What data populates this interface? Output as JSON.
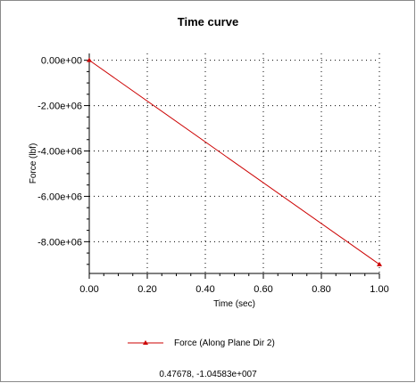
{
  "window": {
    "title": "Time curve"
  },
  "readout": "0.47678, -1.04583e+007",
  "chart_data": {
    "type": "line",
    "title": "Time curve",
    "xlabel": "Time (sec)",
    "ylabel": "Force (lbf)",
    "xlim": [
      0,
      1
    ],
    "ylim": [
      -9400000,
      300000
    ],
    "x_ticks": [
      0,
      0.2,
      0.4,
      0.6,
      0.8,
      1.0
    ],
    "x_tick_labels": [
      "0.00",
      "0.20",
      "0.40",
      "0.60",
      "0.80",
      "1.00"
    ],
    "y_ticks": [
      0,
      -2000000,
      -4000000,
      -6000000,
      -8000000
    ],
    "y_tick_labels": [
      "0.00e+00",
      "-2.00e+06",
      "-4.00e+06",
      "-6.00e+06",
      "-8.00e+06"
    ],
    "grid": true,
    "legend_position": "bottom",
    "series": [
      {
        "name": "Force (Along Plane Dir 2)",
        "color": "#cc0000",
        "marker": "triangle",
        "x": [
          0,
          1
        ],
        "y": [
          0,
          -9000000
        ]
      }
    ]
  }
}
